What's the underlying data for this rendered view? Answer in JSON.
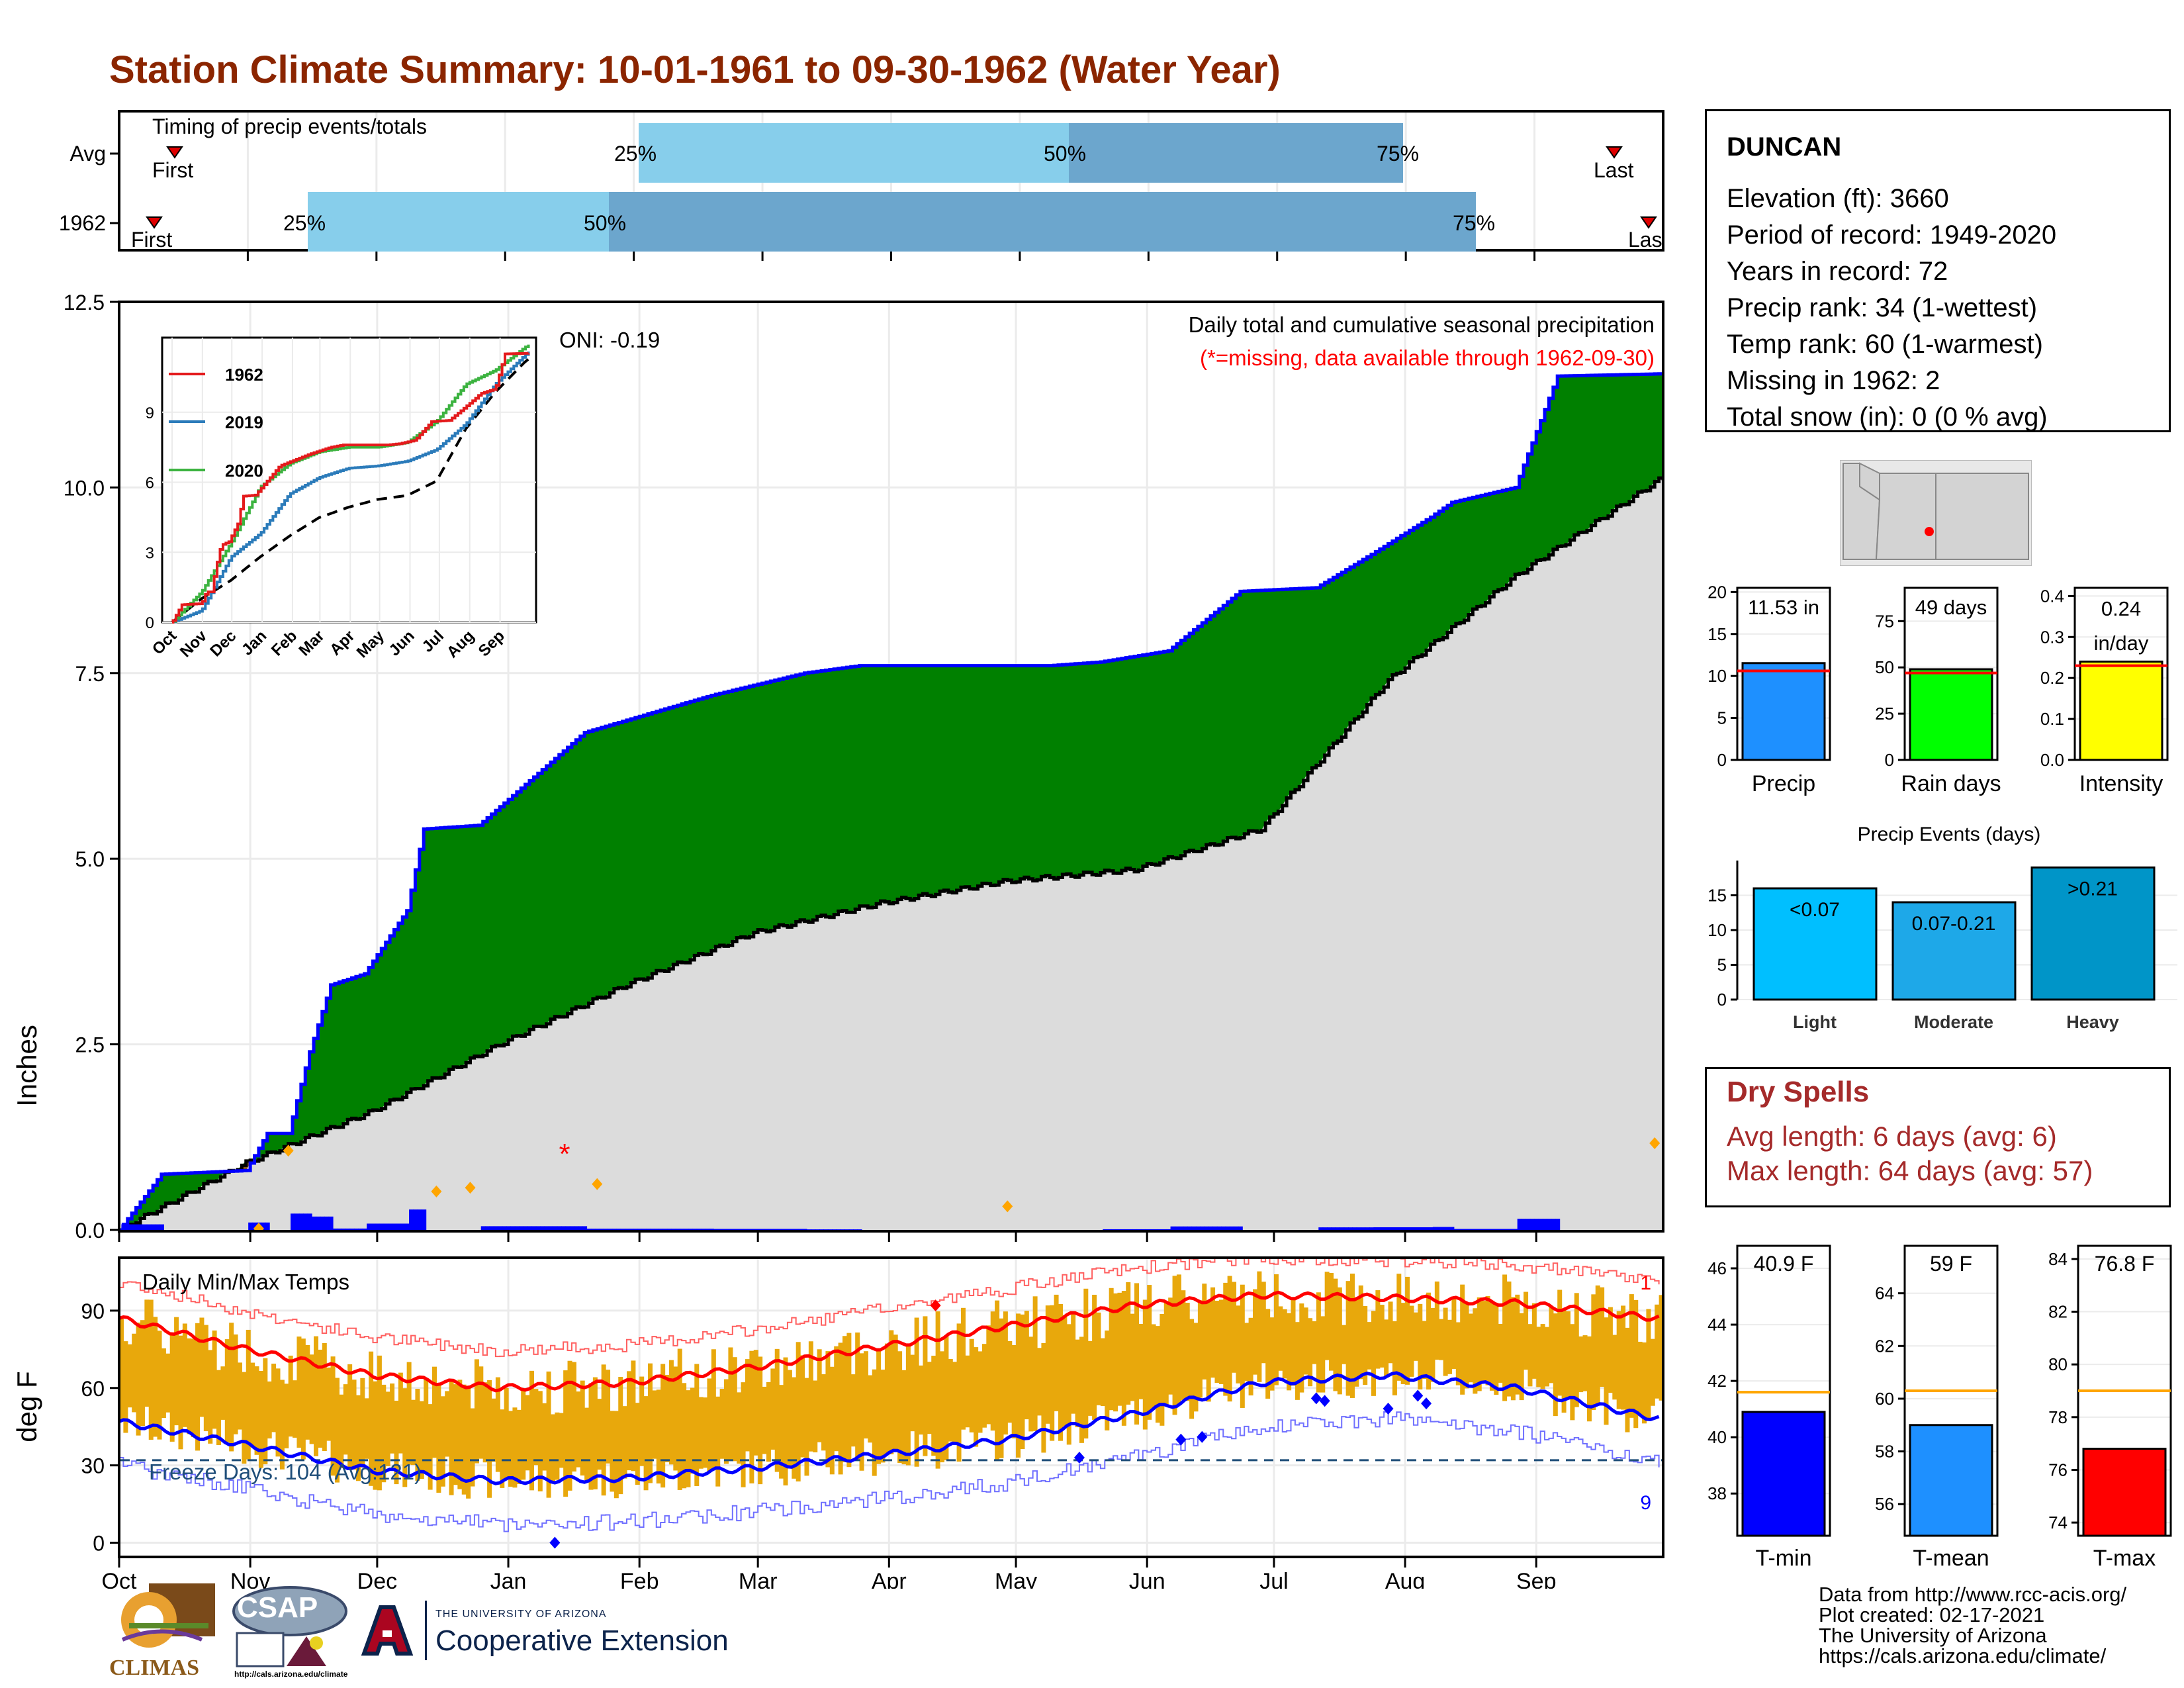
{
  "title": "Station Climate Summary: 10-01-1961 to 09-30-1962 (Water Year)",
  "timing": {
    "label": "Timing of precip events/totals",
    "rows": [
      {
        "label": "Avg",
        "first_label": "First",
        "last_label": "Last",
        "q25": "25%",
        "q50": "50%",
        "q75": "75%"
      },
      {
        "label": "1962",
        "first_label": "First",
        "last_label": "Las",
        "q25": "25%",
        "q50": "50%",
        "q75": "75%"
      }
    ]
  },
  "station": {
    "name": "DUNCAN",
    "elevation": "Elevation (ft): 3660",
    "period": "Period of record: 1949-2020",
    "years": "Years in record: 72",
    "precip_rank": "Precip rank: 34 (1-wettest)",
    "temp_rank": "Temp rank: 60 (1-warmest)",
    "missing": "Missing in 1962: 2",
    "snow": "Total snow (in): 0 (0 % avg)"
  },
  "precip_panel": {
    "header": "Daily total and cumulative seasonal precipitation",
    "missing_note": "(*=missing, data available through 1962-09-30)",
    "oni": "ONI: -0.19",
    "ylabel": "Inches",
    "yticks": [
      "0.0",
      "2.5",
      "5.0",
      "7.5",
      "10.0",
      "12.5"
    ]
  },
  "inset": {
    "legend": [
      "1962",
      "2019",
      "2020"
    ],
    "yticks": [
      "0",
      "3",
      "6",
      "9"
    ],
    "xticks": [
      "Oct",
      "Nov",
      "Dec",
      "Jan",
      "Feb",
      "Mar",
      "Apr",
      "May",
      "Jun",
      "Jul",
      "Aug",
      "Sep"
    ]
  },
  "temp_panel": {
    "header": "Daily Min/Max Temps",
    "freeze": "Freeze Days: 104 (Avg:121)",
    "ylabel": "deg F",
    "yticks": [
      "0",
      "30",
      "60",
      "90"
    ],
    "rec_high_count": "1",
    "rec_low_count": "9"
  },
  "months": [
    "Oct",
    "Nov",
    "Dec",
    "Jan",
    "Feb",
    "Mar",
    "Apr",
    "May",
    "Jun",
    "Jul",
    "Aug",
    "Sep"
  ],
  "mini_bars": {
    "precip": {
      "label": "Precip",
      "value_text": "11.53 in",
      "yticks": [
        "0",
        "5",
        "10",
        "15",
        "20"
      ]
    },
    "rain_days": {
      "label": "Rain days",
      "value_text": "49 days",
      "yticks": [
        "0",
        "25",
        "50",
        "75"
      ]
    },
    "intensity": {
      "label": "Intensity",
      "value_text": "0.24",
      "unit": "in/day",
      "yticks": [
        "0.0",
        "0.1",
        "0.2",
        "0.3",
        "0.4"
      ]
    }
  },
  "events": {
    "title": "Precip Events (days)",
    "bars": [
      {
        "cat": "Light",
        "label": "<0.07"
      },
      {
        "cat": "Moderate",
        "label": "0.07-0.21"
      },
      {
        "cat": "Heavy",
        "label": ">0.21"
      }
    ],
    "yticks": [
      "0",
      "5",
      "10",
      "15"
    ]
  },
  "dry_spells": {
    "title": "Dry Spells",
    "avg": "Avg length: 6 days (avg: 6)",
    "max": "Max length: 64 days (avg: 57)"
  },
  "temp_bars": {
    "tmin": {
      "label": "T-min",
      "value_text": "40.9 F",
      "yticks": [
        "38",
        "40",
        "42",
        "44",
        "46"
      ]
    },
    "tmean": {
      "label": "T-mean",
      "value_text": "59 F",
      "yticks": [
        "56",
        "58",
        "60",
        "62",
        "64"
      ]
    },
    "tmax": {
      "label": "T-max",
      "value_text": "76.8 F",
      "yticks": [
        "74",
        "76",
        "78",
        "80",
        "82",
        "84"
      ]
    }
  },
  "footer": {
    "line1": "Data from http://www.rcc-acis.org/",
    "line2": "Plot created: 02-17-2021",
    "line3": "The University of Arizona",
    "line4": "https://cals.arizona.edu/climate/"
  },
  "logos": {
    "climas": "CLIMAS",
    "csap": "CSAP",
    "csap_url": "http://cals.arizona.edu/climate",
    "ua_small": "THE UNIVERSITY OF ARIZONA",
    "ua_big": "Cooperative Extension"
  },
  "colors": {
    "title": "#8B2500",
    "green": "#008000",
    "gray": "#DCDCDC",
    "blue": "#0000FF",
    "light_blue": "#87CEEB",
    "mid_blue": "#6CA6CD",
    "gold": "#E8A80C",
    "red": "#FF0000"
  },
  "chart_data": [
    {
      "type": "area",
      "title": "Daily total and cumulative seasonal precipitation",
      "ylabel": "Inches",
      "ylim": [
        0,
        12.5
      ],
      "x": [
        "Oct",
        "Nov",
        "Dec",
        "Jan",
        "Feb",
        "Mar",
        "Apr",
        "May",
        "Jun",
        "Jul",
        "Aug",
        "Sep"
      ],
      "series": [
        {
          "name": "1962",
          "points": [
            [
              0,
              0
            ],
            [
              10,
              0.75
            ],
            [
              30,
              0.8
            ],
            [
              35,
              1.3
            ],
            [
              40,
              1.3
            ],
            [
              45,
              2.4
            ],
            [
              50,
              3.3
            ],
            [
              58,
              3.45
            ],
            [
              68,
              4.3
            ],
            [
              72,
              5.4
            ],
            [
              85,
              5.45
            ],
            [
              110,
              6.7
            ],
            [
              140,
              7.2
            ],
            [
              162,
              7.5
            ],
            [
              175,
              7.6
            ],
            [
              220,
              7.6
            ],
            [
              232,
              7.65
            ],
            [
              248,
              7.8
            ],
            [
              265,
              8.6
            ],
            [
              283,
              8.65
            ],
            [
              296,
              9.1
            ],
            [
              310,
              9.6
            ],
            [
              315,
              9.8
            ],
            [
              330,
              10.0
            ],
            [
              340,
              11.5
            ],
            [
              364,
              11.53
            ]
          ]
        },
        {
          "name": "Avg",
          "points": [
            [
              0,
              0
            ],
            [
              30,
              0.9
            ],
            [
              60,
              1.6
            ],
            [
              90,
              2.5
            ],
            [
              120,
              3.3
            ],
            [
              150,
              4.0
            ],
            [
              180,
              4.4
            ],
            [
              210,
              4.7
            ],
            [
              240,
              4.85
            ],
            [
              270,
              5.4
            ],
            [
              300,
              7.4
            ],
            [
              330,
              8.8
            ],
            [
              364,
              10.1
            ]
          ]
        }
      ]
    },
    {
      "type": "line",
      "title": "Daily Min/Max Temps",
      "ylabel": "deg F",
      "ylim": [
        -5,
        110
      ],
      "x": [
        "Oct",
        "Nov",
        "Dec",
        "Jan",
        "Feb",
        "Mar",
        "Apr",
        "May",
        "Jun",
        "Jul",
        "Aug",
        "Sep"
      ],
      "series": [
        {
          "name": "Avg max",
          "points": [
            [
              0,
              87
            ],
            [
              30,
              75
            ],
            [
              60,
              65
            ],
            [
              90,
              60
            ],
            [
              120,
              62
            ],
            [
              150,
              68
            ],
            [
              180,
              76
            ],
            [
              210,
              84
            ],
            [
              240,
              92
            ],
            [
              270,
              96
            ],
            [
              300,
              95
            ],
            [
              330,
              93
            ],
            [
              364,
              87
            ]
          ]
        },
        {
          "name": "Avg min",
          "points": [
            [
              0,
              47
            ],
            [
              30,
              38
            ],
            [
              60,
              28
            ],
            [
              90,
              24
            ],
            [
              120,
              25
            ],
            [
              150,
              29
            ],
            [
              180,
              34
            ],
            [
              210,
              40
            ],
            [
              240,
              50
            ],
            [
              270,
              62
            ],
            [
              300,
              65
            ],
            [
              330,
              60
            ],
            [
              364,
              48
            ]
          ]
        }
      ]
    },
    {
      "type": "bar",
      "title": "Precip Events (days)",
      "categories": [
        "Light",
        "Moderate",
        "Heavy"
      ],
      "values": [
        16,
        14,
        19
      ],
      "ylim": [
        0,
        20
      ]
    },
    {
      "type": "bar",
      "categories": [
        "Precip",
        "Rain days",
        "Intensity"
      ],
      "series": [
        {
          "name": "1962",
          "values": [
            11.53,
            49,
            0.24
          ]
        },
        {
          "name": "Avg",
          "values": [
            10.6,
            47,
            0.23
          ]
        }
      ]
    },
    {
      "type": "bar",
      "categories": [
        "T-min",
        "T-mean",
        "T-max"
      ],
      "series": [
        {
          "name": "1962",
          "values": [
            40.9,
            59,
            76.8
          ]
        },
        {
          "name": "Avg",
          "values": [
            41.6,
            60.3,
            79
          ]
        }
      ]
    }
  ]
}
